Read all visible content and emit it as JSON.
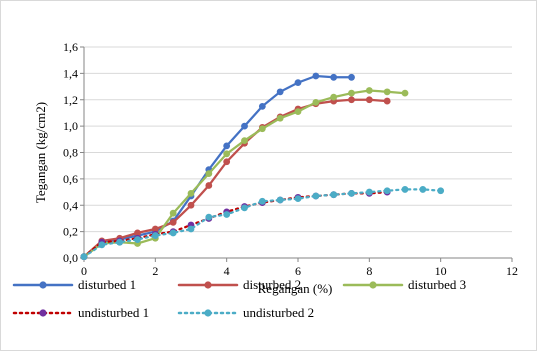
{
  "chart_data": {
    "type": "line",
    "title": "",
    "xlabel": "Regangan (%)",
    "ylabel": "Tegangan (kg/cm2)",
    "xlim": [
      0,
      12
    ],
    "ylim": [
      0,
      1.6
    ],
    "x_ticks": [
      "0",
      "2",
      "4",
      "6",
      "8",
      "10",
      "12"
    ],
    "y_ticks": [
      "0,0",
      "0,2",
      "0,4",
      "0,6",
      "0,8",
      "1,0",
      "1,2",
      "1,4",
      "1,6"
    ],
    "grid": "horizontal",
    "legend_position": "bottom",
    "series": [
      {
        "name": "disturbed 1",
        "color": "#4472c4",
        "style": "solid",
        "x": [
          0,
          0.5,
          1,
          1.5,
          2,
          2.5,
          3,
          3.5,
          4,
          4.5,
          5,
          5.5,
          6,
          6.5,
          7,
          7.5
        ],
        "y": [
          0.01,
          0.12,
          0.14,
          0.17,
          0.2,
          0.28,
          0.47,
          0.67,
          0.85,
          1.0,
          1.15,
          1.26,
          1.33,
          1.38,
          1.37,
          1.37
        ]
      },
      {
        "name": "disturbed 2",
        "color": "#c0504d",
        "style": "solid",
        "x": [
          0,
          0.5,
          1,
          1.5,
          2,
          2.5,
          3,
          3.5,
          4,
          4.5,
          5,
          5.5,
          6,
          6.5,
          7,
          7.5,
          8,
          8.5
        ],
        "y": [
          0.01,
          0.13,
          0.15,
          0.19,
          0.22,
          0.27,
          0.4,
          0.55,
          0.73,
          0.87,
          0.99,
          1.07,
          1.13,
          1.17,
          1.19,
          1.2,
          1.2,
          1.19
        ]
      },
      {
        "name": "disturbed 3",
        "color": "#9bbb59",
        "style": "solid",
        "x": [
          0,
          0.5,
          1,
          1.5,
          2,
          2.5,
          3,
          3.5,
          4,
          4.5,
          5,
          5.5,
          6,
          6.5,
          7,
          7.5,
          8,
          8.5,
          9
        ],
        "y": [
          0.01,
          0.11,
          0.12,
          0.11,
          0.15,
          0.34,
          0.49,
          0.64,
          0.79,
          0.89,
          0.98,
          1.06,
          1.11,
          1.18,
          1.22,
          1.25,
          1.27,
          1.26,
          1.25
        ]
      },
      {
        "name": "undisturbed 1",
        "color": "#7030a0",
        "line_color": "#c00000",
        "style": "dotted",
        "x": [
          0,
          0.5,
          1,
          1.5,
          2,
          2.5,
          3,
          3.5,
          4,
          4.5,
          5,
          5.5,
          6,
          6.5,
          7,
          7.5,
          8,
          8.5
        ],
        "y": [
          0.01,
          0.12,
          0.13,
          0.15,
          0.18,
          0.2,
          0.25,
          0.3,
          0.35,
          0.39,
          0.42,
          0.44,
          0.46,
          0.47,
          0.48,
          0.49,
          0.49,
          0.5
        ]
      },
      {
        "name": "undisturbed 2",
        "color": "#4bacc6",
        "style": "dotted",
        "x": [
          0,
          0.5,
          1,
          1.5,
          2,
          2.5,
          3,
          3.5,
          4,
          4.5,
          5,
          5.5,
          6,
          6.5,
          7,
          7.5,
          8,
          8.5,
          9,
          9.5,
          10
        ],
        "y": [
          0.01,
          0.1,
          0.12,
          0.14,
          0.17,
          0.19,
          0.22,
          0.31,
          0.33,
          0.38,
          0.43,
          0.44,
          0.45,
          0.47,
          0.48,
          0.49,
          0.5,
          0.51,
          0.52,
          0.52,
          0.51
        ]
      }
    ]
  }
}
